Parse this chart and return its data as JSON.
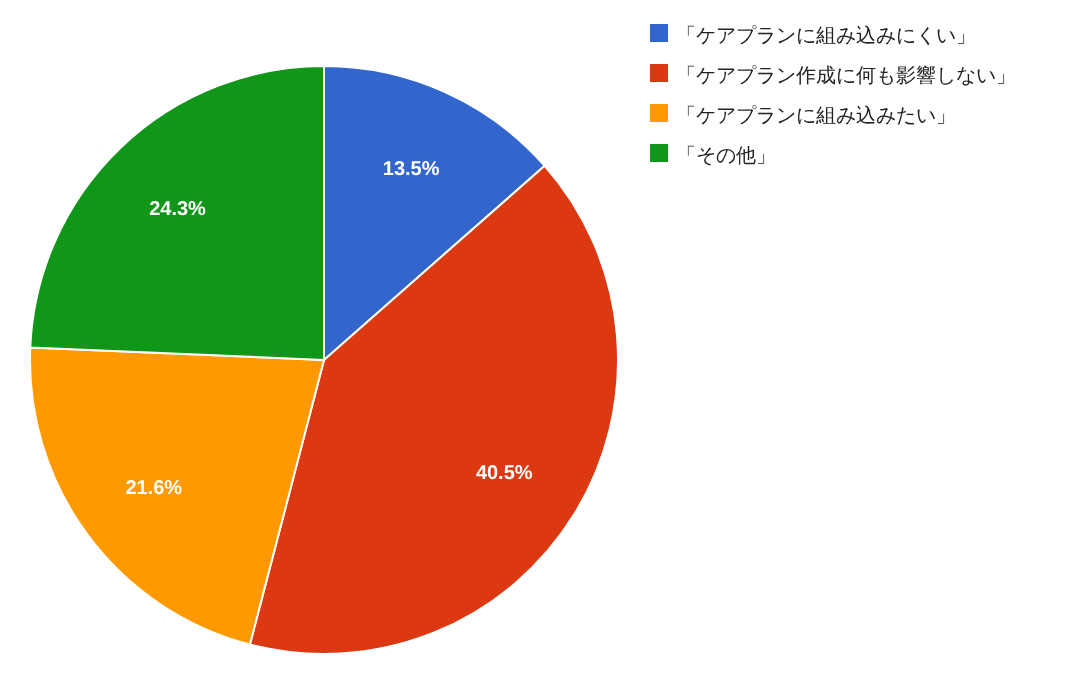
{
  "chart_data": {
    "type": "pie",
    "categories": [
      "「ケアプランに組み込みにくい」",
      "「ケアプラン作成に何も影響しない」",
      "「ケアプランに組み込みたい」",
      "「その他」"
    ],
    "values": [
      13.5,
      40.5,
      21.6,
      24.3
    ],
    "colors": [
      "#3366cc",
      "#dc3912",
      "#ff9900",
      "#109618"
    ],
    "value_labels": [
      "13.5%",
      "40.5%",
      "21.6%",
      "24.3%"
    ],
    "legend": "top right"
  }
}
